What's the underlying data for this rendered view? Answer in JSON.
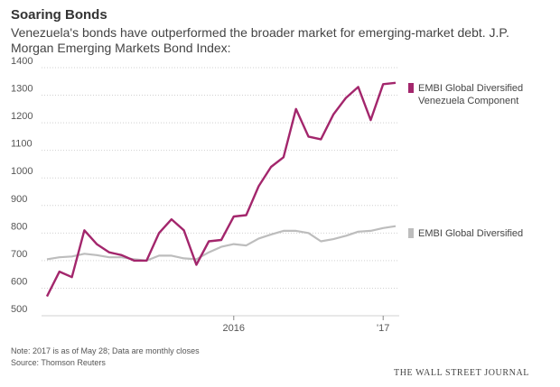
{
  "chart_data": {
    "type": "line",
    "title": "Soaring Bonds",
    "subtitle": "Venezuela's bonds have outperformed the broader market for emerging-market debt. J.P. Morgan Emerging Markets Bond Index:",
    "xlabel": "",
    "ylabel": "",
    "ylim": [
      500,
      1400
    ],
    "yticks": [
      500,
      600,
      700,
      800,
      900,
      1000,
      1100,
      1200,
      1300,
      1400
    ],
    "xticks": [
      {
        "label": "2016",
        "index": 15
      },
      {
        "label": "'17",
        "index": 27
      }
    ],
    "x": [
      "2015-01",
      "2015-02",
      "2015-03",
      "2015-04",
      "2015-05",
      "2015-06",
      "2015-07",
      "2015-08",
      "2015-09",
      "2015-10",
      "2015-11",
      "2015-12",
      "2016-01",
      "2016-02",
      "2016-03",
      "2016-04",
      "2016-05",
      "2016-06",
      "2016-07",
      "2016-08",
      "2016-09",
      "2016-10",
      "2016-11",
      "2016-12",
      "2017-01",
      "2017-02",
      "2017-03",
      "2017-04",
      "2017-05"
    ],
    "grid": true,
    "series": [
      {
        "name": "EMBI Global Diversified Venezuela Component",
        "color": "#a3266c",
        "values": [
          570,
          660,
          640,
          810,
          760,
          730,
          720,
          700,
          700,
          800,
          850,
          810,
          685,
          770,
          775,
          860,
          865,
          970,
          1040,
          1075,
          1250,
          1150,
          1140,
          1230,
          1290,
          1330,
          1210,
          1340,
          1345
        ]
      },
      {
        "name": "EMBI Global Diversified",
        "color": "#bdbdbd",
        "values": [
          705,
          712,
          715,
          725,
          720,
          712,
          712,
          705,
          700,
          718,
          718,
          708,
          705,
          730,
          750,
          760,
          755,
          780,
          795,
          808,
          808,
          800,
          770,
          778,
          790,
          805,
          808,
          818,
          825
        ]
      }
    ]
  },
  "footer": {
    "note": "Note: 2017 is as of May 28; Data are monthly closes",
    "source": "Source: Thomson Reuters",
    "publisher": "THE WALL STREET JOURNAL"
  }
}
